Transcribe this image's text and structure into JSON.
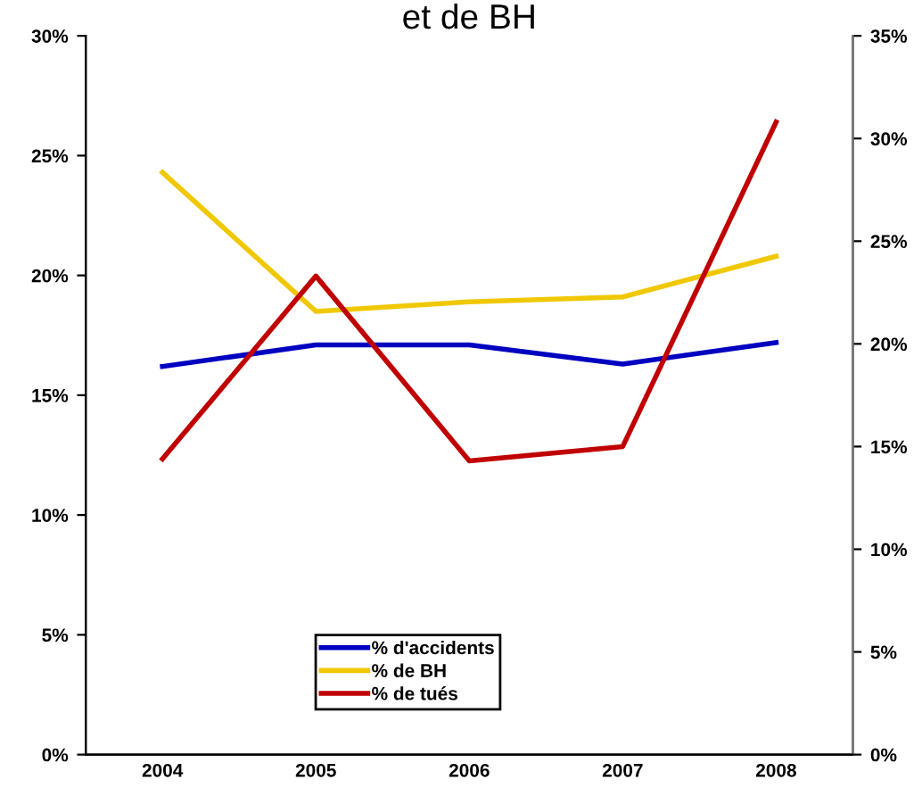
{
  "chart_data": {
    "type": "line",
    "title": "et de BH",
    "categories": [
      "2004",
      "2005",
      "2006",
      "2007",
      "2008"
    ],
    "series": [
      {
        "name": "% d'accidents",
        "color": "#0000c0",
        "values": [
          16.2,
          17.1,
          17.1,
          16.3,
          17.2
        ]
      },
      {
        "name": "% de BH",
        "color": "#f0c800",
        "values": [
          24.3,
          18.5,
          18.9,
          19.1,
          20.8
        ]
      },
      {
        "name": "% de tués",
        "color": "#c00000",
        "values": [
          14.4,
          23.3,
          14.3,
          15.0,
          30.8
        ],
        "axis": "y2"
      }
    ],
    "ylim": [
      0,
      30
    ],
    "yticks": [
      {
        "value": 0,
        "label": "0%"
      },
      {
        "value": 5,
        "label": "5%"
      },
      {
        "value": 10,
        "label": "10%"
      },
      {
        "value": 15,
        "label": "15%"
      },
      {
        "value": 20,
        "label": "20%"
      },
      {
        "value": 25,
        "label": "25%"
      },
      {
        "value": 30,
        "label": "30%"
      }
    ],
    "y2lim": [
      0,
      35
    ],
    "y2ticks": [
      {
        "value": 0,
        "label": "0%"
      },
      {
        "value": 5,
        "label": "5%"
      },
      {
        "value": 10,
        "label": "10%"
      },
      {
        "value": 15,
        "label": "15%"
      },
      {
        "value": 20,
        "label": "20%"
      },
      {
        "value": 25,
        "label": "25%"
      },
      {
        "value": 30,
        "label": "30%"
      },
      {
        "value": 35,
        "label": "35%"
      }
    ],
    "grid": false,
    "legend": "bottom",
    "marker": "none",
    "line_style": "solid"
  }
}
